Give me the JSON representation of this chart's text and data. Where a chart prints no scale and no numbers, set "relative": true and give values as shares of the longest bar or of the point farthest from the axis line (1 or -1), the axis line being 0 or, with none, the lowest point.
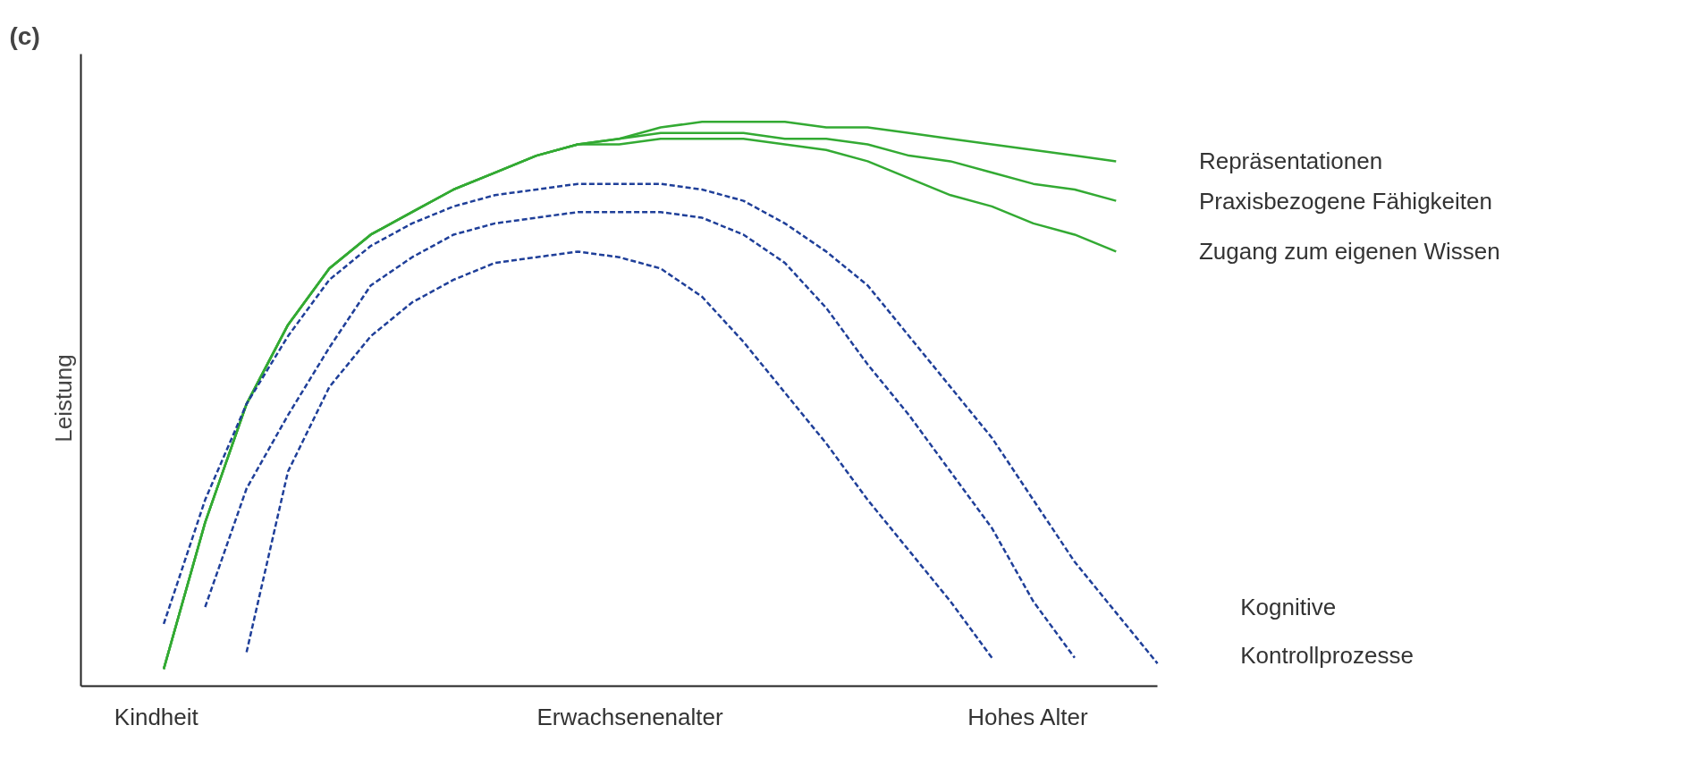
{
  "chart_data": {
    "type": "line",
    "title": "(c)",
    "ylabel": "Leistung",
    "relative": true,
    "legend": false,
    "categories": [
      null,
      null,
      null,
      null,
      null,
      null,
      null,
      null,
      null,
      null,
      null,
      null,
      null,
      null,
      null,
      null,
      null,
      null,
      null,
      null,
      null,
      null,
      null,
      null,
      null,
      null
    ],
    "annotations": [
      "Kindheit",
      "Erwachsenenalter",
      "Hohes Alter",
      "Kognitive Kontrollprozesse"
    ],
    "series": [
      {
        "name": "Repräsentationen",
        "color": "#33aa33",
        "line_style": "solid",
        "values": [
          null,
          0.03,
          0.29,
          0.5,
          0.64,
          0.74,
          0.8,
          0.84,
          0.88,
          0.91,
          0.94,
          0.96,
          0.97,
          0.99,
          1.0,
          1.0,
          1.0,
          0.99,
          0.99,
          0.98,
          0.97,
          0.96,
          0.95,
          0.94,
          0.93,
          null
        ]
      },
      {
        "name": "Praxisbezogene Fähigkeiten",
        "color": "#33aa33",
        "line_style": "solid",
        "values": [
          null,
          0.03,
          0.29,
          0.5,
          0.64,
          0.74,
          0.8,
          0.84,
          0.88,
          0.91,
          0.94,
          0.96,
          0.97,
          0.98,
          0.98,
          0.98,
          0.97,
          0.97,
          0.96,
          0.94,
          0.93,
          0.91,
          0.89,
          0.88,
          0.86,
          null
        ]
      },
      {
        "name": "Zugang zum eigenen Wissen",
        "color": "#33aa33",
        "line_style": "solid",
        "values": [
          null,
          0.03,
          0.29,
          0.5,
          0.64,
          0.74,
          0.8,
          0.84,
          0.88,
          0.91,
          0.94,
          0.96,
          0.96,
          0.97,
          0.97,
          0.97,
          0.96,
          0.95,
          0.93,
          0.9,
          0.87,
          0.85,
          0.82,
          0.8,
          0.77,
          null
        ]
      },
      {
        "color": "#1f3f99",
        "line_style": "dashed",
        "values": [
          null,
          0.11,
          0.33,
          0.5,
          0.62,
          0.72,
          0.78,
          0.82,
          0.85,
          0.87,
          0.88,
          0.89,
          0.89,
          0.89,
          0.88,
          0.86,
          0.82,
          0.77,
          0.71,
          0.62,
          0.53,
          0.44,
          0.33,
          0.22,
          0.13,
          0.04
        ]
      },
      {
        "color": "#1f3f99",
        "line_style": "dashed",
        "values": [
          null,
          null,
          0.14,
          0.35,
          0.48,
          0.6,
          0.71,
          0.76,
          0.8,
          0.82,
          0.83,
          0.84,
          0.84,
          0.84,
          0.83,
          0.8,
          0.75,
          0.67,
          0.57,
          0.48,
          0.38,
          0.28,
          0.15,
          0.05,
          null,
          null
        ]
      },
      {
        "color": "#1f3f99",
        "line_style": "dashed",
        "values": [
          null,
          null,
          null,
          0.06,
          0.38,
          0.53,
          0.62,
          0.68,
          0.72,
          0.75,
          0.76,
          0.77,
          0.76,
          0.74,
          0.69,
          0.61,
          0.52,
          0.43,
          0.33,
          0.24,
          0.15,
          0.05,
          null,
          null,
          null,
          null
        ]
      }
    ]
  }
}
